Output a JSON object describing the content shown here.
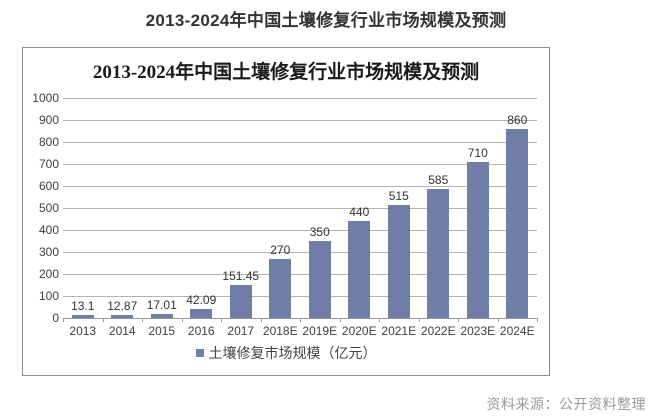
{
  "page": {
    "title": "2013-2024年中国土壤修复行业市场规模及预测"
  },
  "chart": {
    "box_title": "2013-2024年中国土壤修复行业市场规模及预测",
    "legend_label": "土壤修复市场规模（亿元）"
  },
  "source_note": "资料来源：公开资料整理",
  "colors": {
    "bar": "#6e7ea4",
    "grid": "#b3b3b3",
    "axis": "#999999",
    "box_border": "#8c8c8c",
    "title_text": "#333333",
    "value_label_text": "#333333",
    "source_text": "#9a9a9a"
  },
  "chart_data": {
    "type": "bar",
    "title": "2013-2024年中国土壤修复行业市场规模及预测",
    "categories": [
      "2013",
      "2014",
      "2015",
      "2016",
      "2017",
      "2018E",
      "2019E",
      "2020E",
      "2021E",
      "2022E",
      "2023E",
      "2024E"
    ],
    "values": [
      13.1,
      12.87,
      17.01,
      42.09,
      151.45,
      270,
      350,
      440,
      515,
      585,
      710,
      860
    ],
    "series_name": "土壤修复市场规模（亿元）",
    "xlabel": "",
    "ylabel": "",
    "ylim": [
      0,
      1000
    ],
    "ytick_step": 100,
    "grid": true,
    "legend_position": "bottom",
    "data_labels": true
  }
}
